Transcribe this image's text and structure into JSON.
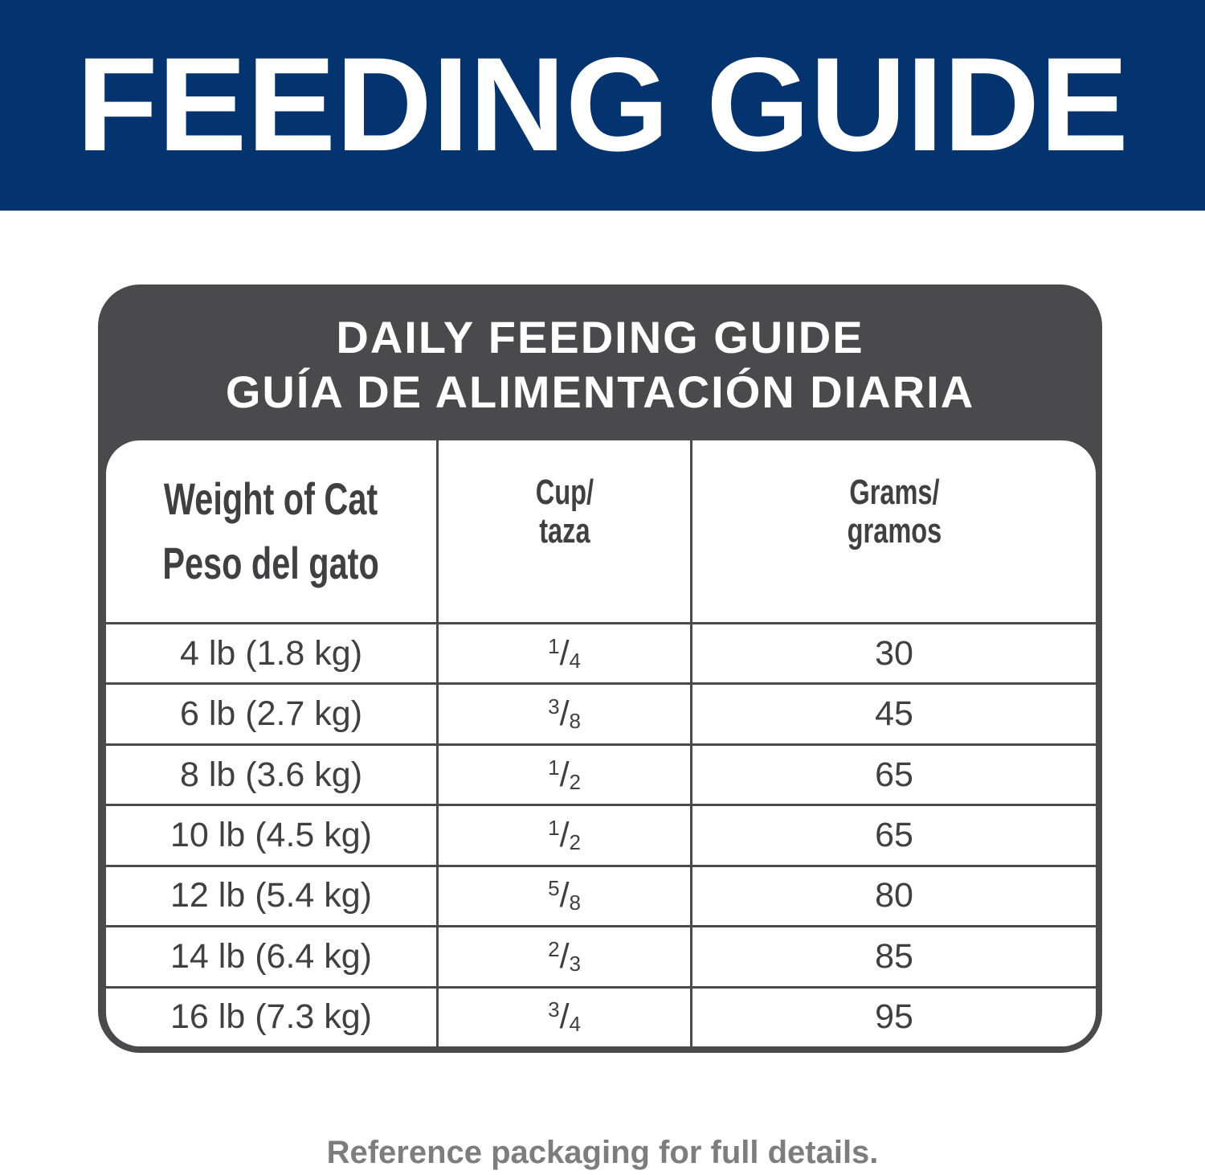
{
  "banner": {
    "title": "FEEDING GUIDE",
    "color": "#04346f"
  },
  "card": {
    "title_en": "DAILY FEEDING GUIDE",
    "title_es": "GUÍA DE ALIMENTACIÓN DIARIA",
    "color": "#4a4a4c"
  },
  "table": {
    "headers": {
      "weight_en": "Weight of Cat",
      "weight_es": "Peso del gato",
      "cup_en": "Cup/",
      "cup_es": "taza",
      "grams_en": "Grams/",
      "grams_es": "gramos"
    },
    "rows": [
      {
        "weight": "4 lb (1.8 kg)",
        "cup_num": "1",
        "cup_den": "4",
        "grams": "30"
      },
      {
        "weight": "6 lb (2.7 kg)",
        "cup_num": "3",
        "cup_den": "8",
        "grams": "45"
      },
      {
        "weight": "8 lb (3.6 kg)",
        "cup_num": "1",
        "cup_den": "2",
        "grams": "65"
      },
      {
        "weight": "10 lb (4.5 kg)",
        "cup_num": "1",
        "cup_den": "2",
        "grams": "65"
      },
      {
        "weight": "12 lb (5.4 kg)",
        "cup_num": "5",
        "cup_den": "8",
        "grams": "80"
      },
      {
        "weight": "14 lb (6.4 kg)",
        "cup_num": "2",
        "cup_den": "3",
        "grams": "85"
      },
      {
        "weight": "16 lb (7.3 kg)",
        "cup_num": "3",
        "cup_den": "4",
        "grams": "95"
      }
    ]
  },
  "footer": {
    "note": "Reference packaging for full details."
  }
}
